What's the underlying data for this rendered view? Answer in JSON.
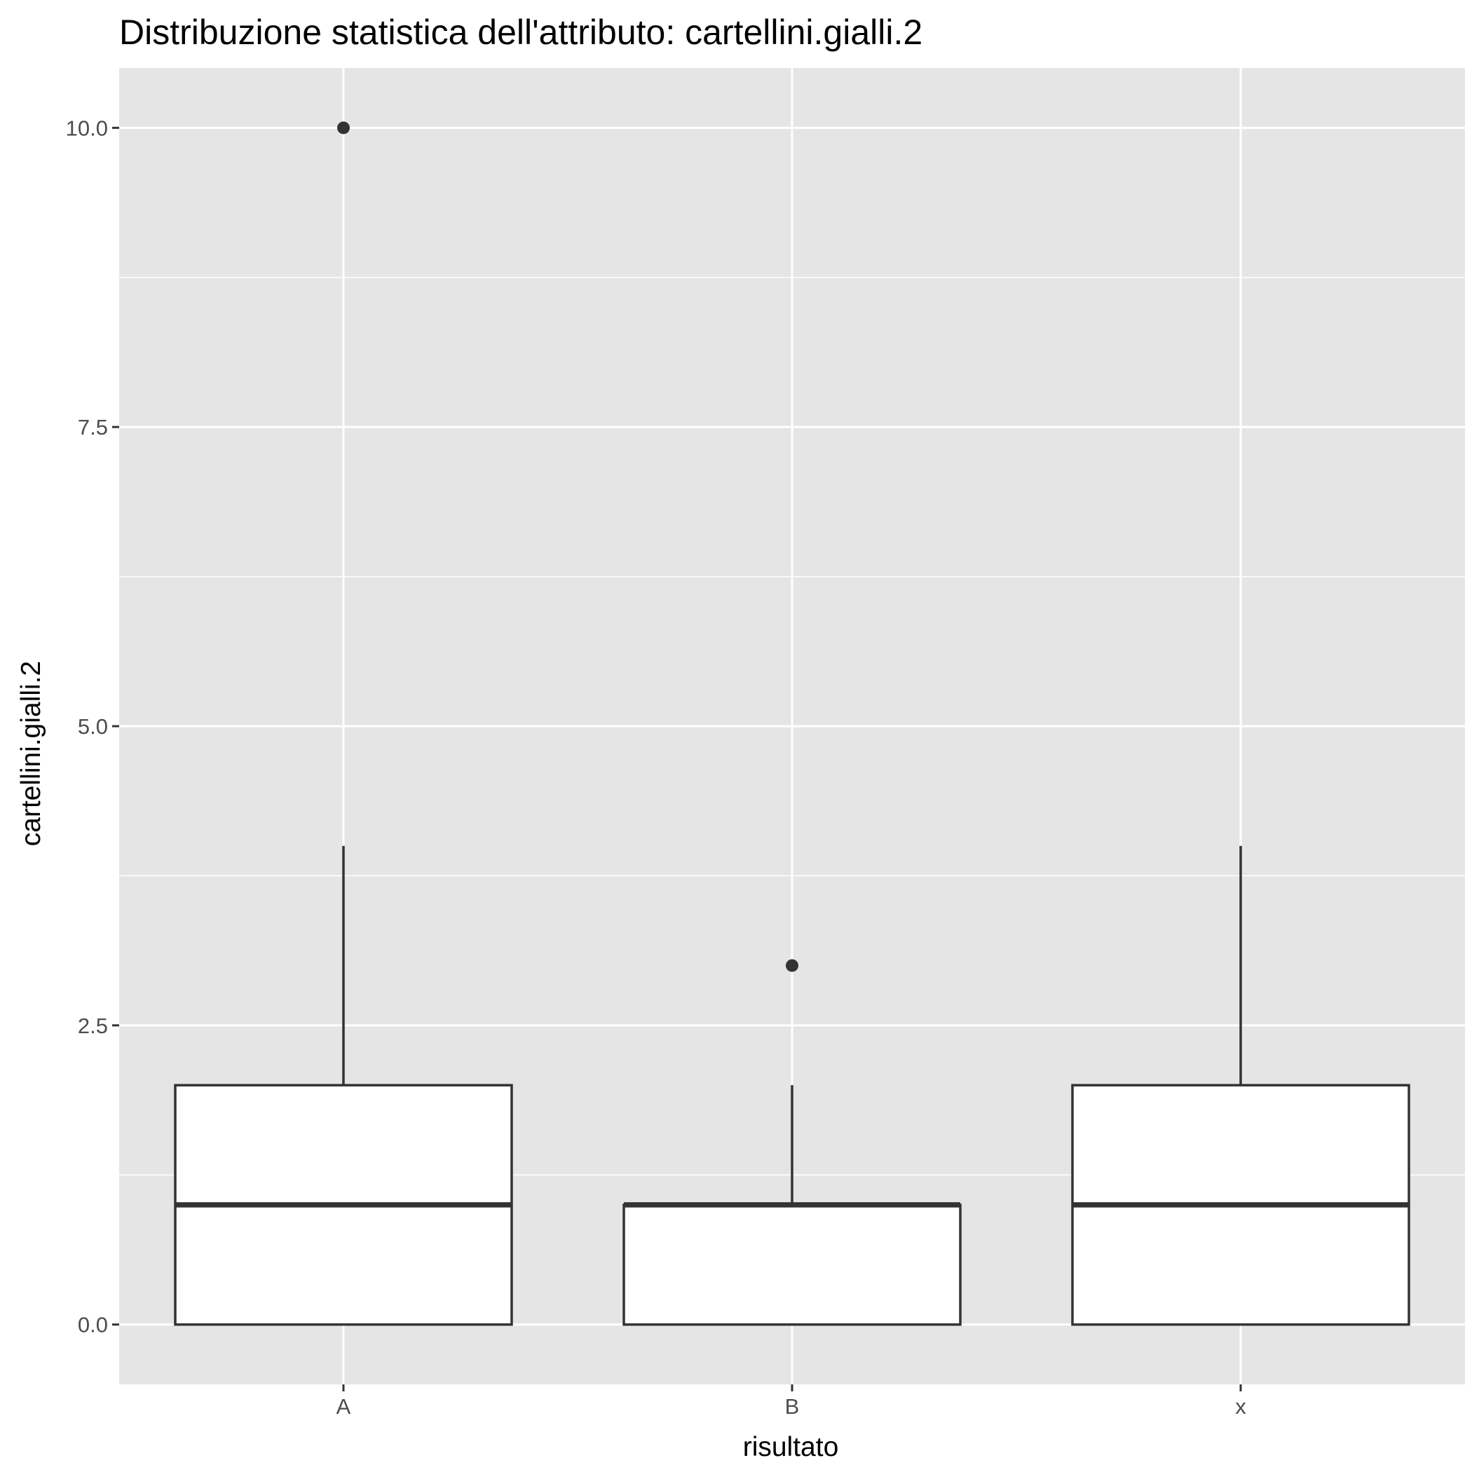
{
  "chart_data": {
    "type": "boxplot",
    "title": "Distribuzione statistica dell'attributo: cartellini.gialli.2",
    "xlabel": "risultato",
    "ylabel": "cartellini.gialli.2",
    "categories": [
      "A",
      "B",
      "x"
    ],
    "boxes": [
      {
        "category": "A",
        "min": 0,
        "q1": 0,
        "median": 1,
        "q3": 2,
        "max": 4,
        "outliers": [
          10
        ]
      },
      {
        "category": "B",
        "min": 0,
        "q1": 0,
        "median": 1,
        "q3": 1,
        "max": 2,
        "outliers": [
          3
        ]
      },
      {
        "category": "x",
        "min": 0,
        "q1": 0,
        "median": 1,
        "q3": 2,
        "max": 4,
        "outliers": []
      }
    ],
    "ylim": [
      -0.5,
      10.5
    ],
    "yticks": [
      0,
      2.5,
      5,
      7.5,
      10
    ],
    "ytick_labels": [
      "0.0",
      "2.5",
      "5.0",
      "7.5",
      "10.0"
    ],
    "grid": true,
    "legend": "none",
    "colors": {
      "panel_background": "#e5e5e5",
      "grid": "#ffffff",
      "box_fill": "#ffffff",
      "box_line": "#333333",
      "tick_text": "#4d4d4d"
    }
  }
}
